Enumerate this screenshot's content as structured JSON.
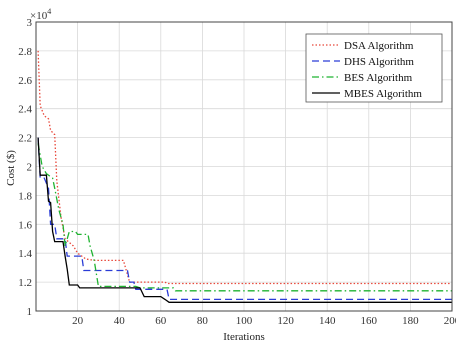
{
  "chart_data": {
    "type": "line",
    "title": "",
    "xlabel": "Iterations",
    "ylabel": "Cost ($)",
    "y_multiplier": "×10",
    "y_exponent": "4",
    "xlim": [
      0,
      200
    ],
    "ylim": [
      1.0,
      3.0
    ],
    "x_ticks": [
      "20",
      "40",
      "60",
      "80",
      "100",
      "120",
      "140",
      "160",
      "180",
      "200"
    ],
    "y_ticks": [
      "1",
      "1.2",
      "1.4",
      "1.6",
      "1.8",
      "2",
      "2.2",
      "2.4",
      "2.6",
      "2.8",
      "3"
    ],
    "grid": true,
    "legend_position": "top-right",
    "series": [
      {
        "name": "DSA Algorithm",
        "color": "#e8473a",
        "dash": "dotted",
        "points": [
          [
            1,
            2.8
          ],
          [
            2,
            2.42
          ],
          [
            4,
            2.35
          ],
          [
            6,
            2.33
          ],
          [
            7,
            2.25
          ],
          [
            9,
            2.22
          ],
          [
            10,
            1.9
          ],
          [
            12,
            1.65
          ],
          [
            14,
            1.5
          ],
          [
            18,
            1.45
          ],
          [
            20,
            1.4
          ],
          [
            24,
            1.36
          ],
          [
            28,
            1.35
          ],
          [
            35,
            1.35
          ],
          [
            42,
            1.35
          ],
          [
            45,
            1.2
          ],
          [
            62,
            1.2
          ],
          [
            63,
            1.19
          ],
          [
            200,
            1.19
          ]
        ]
      },
      {
        "name": "DHS  Algorithm",
        "color": "#2a3cd6",
        "dash": "dashed",
        "points": [
          [
            1,
            2.2
          ],
          [
            2,
            1.92
          ],
          [
            4,
            1.92
          ],
          [
            6,
            1.85
          ],
          [
            7,
            1.6
          ],
          [
            9,
            1.6
          ],
          [
            10,
            1.5
          ],
          [
            14,
            1.5
          ],
          [
            15,
            1.38
          ],
          [
            22,
            1.38
          ],
          [
            23,
            1.28
          ],
          [
            44,
            1.28
          ],
          [
            45,
            1.2
          ],
          [
            47,
            1.2
          ],
          [
            48,
            1.15
          ],
          [
            63,
            1.15
          ],
          [
            64,
            1.08
          ],
          [
            200,
            1.08
          ]
        ]
      },
      {
        "name": "BES Algorithm",
        "color": "#1fb330",
        "dash": "dashdot",
        "points": [
          [
            1,
            2.16
          ],
          [
            3,
            2.0
          ],
          [
            5,
            1.95
          ],
          [
            8,
            1.92
          ],
          [
            9,
            1.85
          ],
          [
            11,
            1.7
          ],
          [
            13,
            1.6
          ],
          [
            14,
            1.45
          ],
          [
            16,
            1.55
          ],
          [
            19,
            1.55
          ],
          [
            20,
            1.53
          ],
          [
            25,
            1.53
          ],
          [
            26,
            1.45
          ],
          [
            28,
            1.35
          ],
          [
            30,
            1.17
          ],
          [
            48,
            1.17
          ],
          [
            50,
            1.16
          ],
          [
            66,
            1.16
          ],
          [
            67,
            1.14
          ],
          [
            200,
            1.14
          ]
        ]
      },
      {
        "name": "MBES Algorithm",
        "color": "#000000",
        "dash": "solid",
        "points": [
          [
            1,
            2.2
          ],
          [
            2,
            1.94
          ],
          [
            5,
            1.94
          ],
          [
            6,
            1.76
          ],
          [
            7,
            1.75
          ],
          [
            8,
            1.55
          ],
          [
            9,
            1.48
          ],
          [
            13,
            1.48
          ],
          [
            14,
            1.38
          ],
          [
            15,
            1.29
          ],
          [
            16,
            1.18
          ],
          [
            20,
            1.18
          ],
          [
            21,
            1.16
          ],
          [
            50,
            1.16
          ],
          [
            52,
            1.1
          ],
          [
            60,
            1.1
          ],
          [
            62,
            1.08
          ],
          [
            64,
            1.06
          ],
          [
            200,
            1.06
          ]
        ]
      }
    ]
  }
}
